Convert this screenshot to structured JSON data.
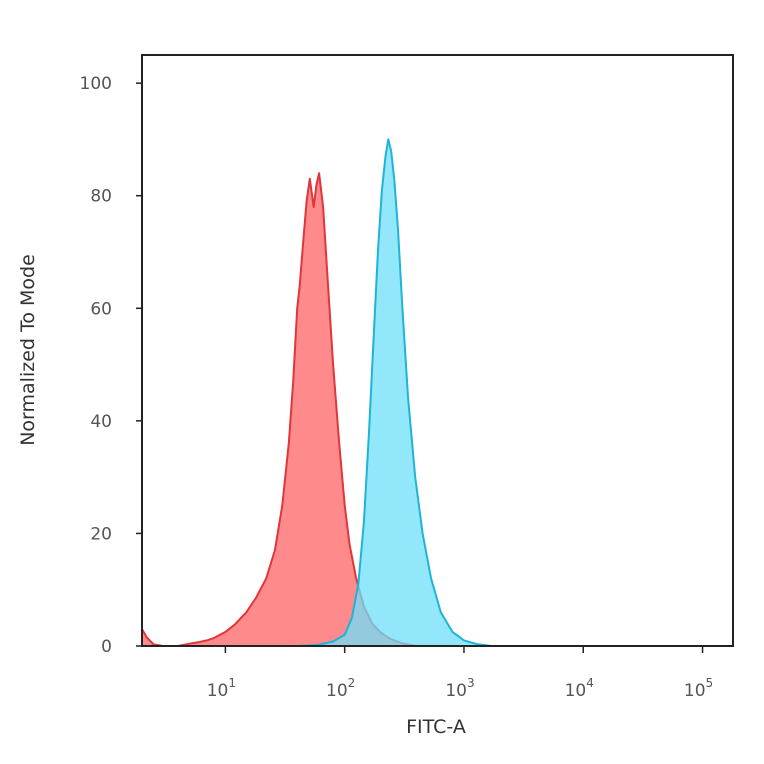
{
  "chart_data": {
    "type": "area",
    "xlabel": "FITC-A",
    "ylabel": "Normalized To Mode",
    "x_scale": "log",
    "xlim": [
      2,
      180000
    ],
    "ylim": [
      0,
      105
    ],
    "y_ticks": [
      0,
      20,
      40,
      60,
      80,
      100
    ],
    "x_ticks": [
      {
        "value": 10,
        "base": "10",
        "exp": "1"
      },
      {
        "value": 100,
        "base": "10",
        "exp": "2"
      },
      {
        "value": 1000,
        "base": "10",
        "exp": "3"
      },
      {
        "value": 10000,
        "base": "10",
        "exp": "4"
      },
      {
        "value": 100000,
        "base": "10",
        "exp": "5"
      }
    ],
    "grid": false,
    "legend": "none",
    "series": [
      {
        "color": "#e0363a",
        "fill": "#ff8a8c",
        "points": [
          [
            2.0,
            3.0
          ],
          [
            2.2,
            1.5
          ],
          [
            2.5,
            0.3
          ],
          [
            3.0,
            0.0
          ],
          [
            4.0,
            0.0
          ],
          [
            5.0,
            0.4
          ],
          [
            6.0,
            0.7
          ],
          [
            7.0,
            1.0
          ],
          [
            8.0,
            1.4
          ],
          [
            10.0,
            2.5
          ],
          [
            12.0,
            3.8
          ],
          [
            15.0,
            6.0
          ],
          [
            18.0,
            8.5
          ],
          [
            22.0,
            12.0
          ],
          [
            26.0,
            17.0
          ],
          [
            30.0,
            25.0
          ],
          [
            34.0,
            36.0
          ],
          [
            37.0,
            47.0
          ],
          [
            40.0,
            60.0
          ],
          [
            42.0,
            64.0
          ],
          [
            45.0,
            72.0
          ],
          [
            48.0,
            79.0
          ],
          [
            51.0,
            83.0
          ],
          [
            55.0,
            78.0
          ],
          [
            58.0,
            82.0
          ],
          [
            61.0,
            84.0
          ],
          [
            66.0,
            78.0
          ],
          [
            72.0,
            65.0
          ],
          [
            80.0,
            50.0
          ],
          [
            90.0,
            36.0
          ],
          [
            100.0,
            25.0
          ],
          [
            110.0,
            18.0
          ],
          [
            125.0,
            12.0
          ],
          [
            145.0,
            7.0
          ],
          [
            170.0,
            4.0
          ],
          [
            200.0,
            2.4
          ],
          [
            240.0,
            1.3
          ],
          [
            300.0,
            0.5
          ],
          [
            400.0,
            0.0
          ]
        ]
      },
      {
        "color": "#1fb4d6",
        "fill": "#6fdff8",
        "points": [
          [
            40.0,
            0.0
          ],
          [
            60.0,
            0.2
          ],
          [
            80.0,
            0.8
          ],
          [
            100.0,
            2.0
          ],
          [
            115.0,
            5.0
          ],
          [
            130.0,
            11.0
          ],
          [
            145.0,
            22.0
          ],
          [
            160.0,
            38.0
          ],
          [
            175.0,
            55.0
          ],
          [
            190.0,
            70.0
          ],
          [
            205.0,
            81.0
          ],
          [
            220.0,
            87.0
          ],
          [
            232.0,
            90.0
          ],
          [
            245.0,
            88.0
          ],
          [
            260.0,
            83.0
          ],
          [
            280.0,
            74.0
          ],
          [
            305.0,
            60.0
          ],
          [
            340.0,
            44.0
          ],
          [
            390.0,
            30.0
          ],
          [
            450.0,
            20.0
          ],
          [
            530.0,
            12.0
          ],
          [
            640.0,
            6.0
          ],
          [
            800.0,
            2.5
          ],
          [
            1000.0,
            1.0
          ],
          [
            1300.0,
            0.3
          ],
          [
            1700.0,
            0.0
          ]
        ]
      }
    ]
  },
  "colors": {
    "frame": "#222222",
    "overlap": "#7e8fab"
  }
}
